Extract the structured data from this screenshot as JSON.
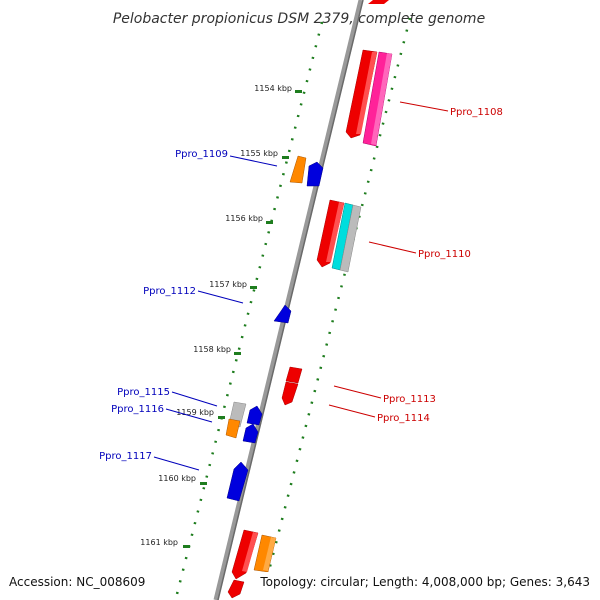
{
  "title": "Pelobacter propionicus DSM 2379, complete genome",
  "footer": {
    "accession": "Accession: NC_008609",
    "topology": "Topology: circular; Length: 4,008,000 bp; Genes: 3,643"
  },
  "colors": {
    "backbone": "#8c8c8c",
    "tick_dots": "#1e7d1e",
    "reverse_label": "#0000bb",
    "forward_label": "#cc0000",
    "gene_red": "#ee0000",
    "gene_pink": "#ff2299",
    "gene_orange": "#ff8800",
    "gene_blue": "#0000dd",
    "gene_cyan": "#00dddd",
    "gene_grey": "#bbbbbb"
  },
  "scale": {
    "ticks": [
      {
        "label": "1154 kbp"
      },
      {
        "label": "1155 kbp"
      },
      {
        "label": "1156 kbp"
      },
      {
        "label": "1157 kbp"
      },
      {
        "label": "1158 kbp"
      },
      {
        "label": "1159 kbp"
      },
      {
        "label": "1160 kbp"
      },
      {
        "label": "1161 kbp"
      }
    ]
  },
  "labels": {
    "forward": [
      {
        "text": "Ppro_1108"
      },
      {
        "text": "Ppro_1110"
      },
      {
        "text": "Ppro_1113"
      },
      {
        "text": "Ppro_1114"
      }
    ],
    "reverse": [
      {
        "text": "Ppro_1109"
      },
      {
        "text": "Ppro_1112"
      },
      {
        "text": "Ppro_1115"
      },
      {
        "text": "Ppro_1116"
      },
      {
        "text": "Ppro_1117"
      }
    ]
  }
}
